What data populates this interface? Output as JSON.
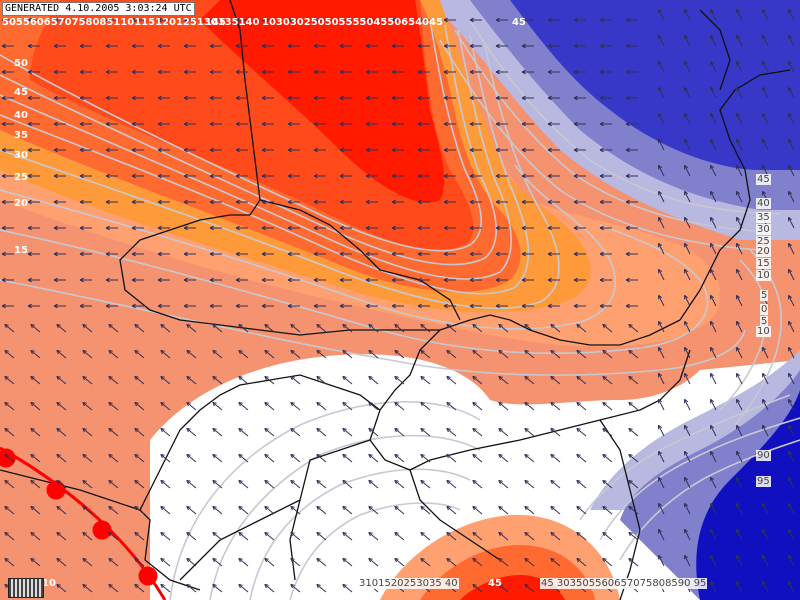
{
  "header": {
    "generated": "GENERATED 4.10.2005 3:03:24 UTC"
  },
  "colors": {
    "deep_red": "#ff1a00",
    "red": "#ff4a1c",
    "orange_red": "#ff6a30",
    "orange": "#ff9a3a",
    "light_orange": "#ffa070",
    "salmon": "#f59270",
    "white": "#ffffff",
    "lavender": "#b8b8e0",
    "periwinkle": "#8080cc",
    "blue": "#3838c8",
    "deep_blue": "#1010c0",
    "contour": "#c8c8d0",
    "border": "#111111",
    "front": "#ff0000"
  },
  "labels": {
    "top_left_strip": "5055606570758085110115120125130135140",
    "top_mid_strip": "145",
    "top_right_strip": "10303025050555504550654045",
    "top_right_end": "45",
    "left_50": "50",
    "left_45": "45",
    "left_40": "40",
    "left_35": "35",
    "left_30": "30",
    "left_25": "25",
    "left_20": "20",
    "left_15": "15",
    "right_45": "45",
    "right_40": "40",
    "right_35": "35",
    "right_30": "30",
    "right_25": "25",
    "right_20": "20",
    "right_15": "15",
    "right_10": "10",
    "right_5": "5",
    "right_0": "0",
    "right_m5": "5",
    "right_m10": "10",
    "right_90": "90",
    "right_95": "95",
    "bottom_left_10": "10",
    "bottom_strip": "3101520253035 40",
    "bottom_45": "45",
    "bottom_right_strip": "45 303505560657075808590 95"
  }
}
